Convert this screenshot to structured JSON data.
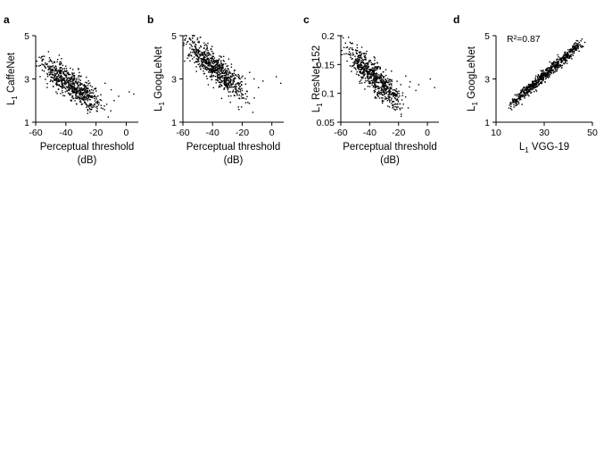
{
  "chart_data": [
    {
      "type": "scatter",
      "panel": "a",
      "xlabel": "Perceptual threshold",
      "xunit": "(dB)",
      "ylabel": "CaffeNet",
      "ylabel_prefix": "L",
      "ylabel_sub": "1",
      "annotation": "",
      "xlim": [
        -60,
        8
      ],
      "ylim": [
        1,
        5
      ],
      "xticks": [
        -60,
        -40,
        -20,
        0
      ],
      "yticks": [
        1,
        3,
        5
      ],
      "trend": {
        "x_start": -52,
        "y_start": 3.5,
        "x_end": -22,
        "y_end": 2.05,
        "x_spread": 9,
        "y_spread": 0.33,
        "n": 700,
        "outliers": [
          [
            -10,
            2.5
          ],
          [
            -5,
            2.2
          ],
          [
            2,
            2.4
          ],
          [
            -14,
            2.8
          ],
          [
            -8,
            2.0
          ],
          [
            5,
            2.3
          ]
        ],
        "seed": 11
      }
    },
    {
      "type": "scatter",
      "panel": "b",
      "xlabel": "Perceptual threshold",
      "xunit": "(dB)",
      "ylabel": "GoogLeNet",
      "ylabel_prefix": "L",
      "ylabel_sub": "1",
      "annotation": "",
      "xlim": [
        -60,
        8
      ],
      "ylim": [
        1,
        5
      ],
      "xticks": [
        -60,
        -40,
        -20,
        0
      ],
      "yticks": [
        1,
        3,
        5
      ],
      "trend": {
        "x_start": -52,
        "y_start": 4.3,
        "x_end": -22,
        "y_end": 2.5,
        "x_spread": 9,
        "y_spread": 0.35,
        "n": 700,
        "outliers": [
          [
            -12,
            3.0
          ],
          [
            -6,
            2.9
          ],
          [
            3,
            3.1
          ],
          [
            -15,
            3.3
          ],
          [
            -9,
            2.6
          ],
          [
            6,
            2.8
          ]
        ],
        "seed": 23
      }
    },
    {
      "type": "scatter",
      "panel": "c",
      "xlabel": "Perceptual threshold",
      "xunit": "(dB)",
      "ylabel": "ResNet-152",
      "ylabel_prefix": "L",
      "ylabel_sub": "1",
      "annotation": "",
      "xlim": [
        -60,
        8
      ],
      "ylim": [
        0.05,
        0.2
      ],
      "xticks": [
        -60,
        -40,
        -20,
        0
      ],
      "yticks": [
        0.05,
        0.1,
        0.15,
        0.2
      ],
      "trend": {
        "x_start": -52,
        "y_start": 0.165,
        "x_end": -22,
        "y_end": 0.092,
        "x_spread": 9,
        "y_spread": 0.013,
        "n": 700,
        "outliers": [
          [
            -12,
            0.12
          ],
          [
            -6,
            0.115
          ],
          [
            2,
            0.125
          ],
          [
            -15,
            0.13
          ],
          [
            -8,
            0.105
          ],
          [
            5,
            0.11
          ]
        ],
        "seed": 37
      }
    },
    {
      "type": "scatter",
      "panel": "d",
      "xlabel": "VGG-19",
      "xunit": "",
      "ylabel": "GoogLeNet",
      "ylabel_prefix": "L",
      "ylabel_sub": "1",
      "xlabel_prefix": "L",
      "xlabel_sub": "1",
      "annotation": "R²=0.87",
      "xlim": [
        10,
        50
      ],
      "ylim": [
        1,
        5
      ],
      "xticks": [
        10,
        30,
        50
      ],
      "yticks": [
        1,
        3,
        5
      ],
      "trend": {
        "x_start": 17,
        "y_start": 1.9,
        "x_end": 44,
        "y_end": 4.5,
        "x_spread": 3,
        "y_spread": 0.14,
        "n": 700,
        "outliers": [],
        "seed": 51
      }
    }
  ]
}
